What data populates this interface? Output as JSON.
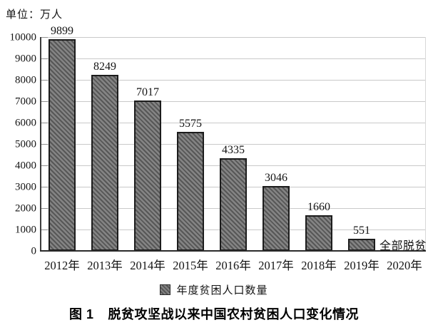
{
  "unit_label": "单位：万人",
  "legend": {
    "label": "年度贫困人口数量"
  },
  "caption": {
    "prefix": "图 1",
    "text": "脱贫攻坚战以来中国农村贫困人口变化情况"
  },
  "annotation_text": "全部脱贫",
  "colors": {
    "bar_fill": "#848484",
    "bar_hatch": "#575757",
    "bar_border": "#1c1c1c",
    "gridline": "#c9c9c9",
    "axis": "#2b2b2b",
    "text": "#141414"
  },
  "chart_data": {
    "type": "bar",
    "title": "图1 脱贫攻坚战以来中国农村贫困人口变化情况",
    "unit": "单位：万人",
    "categories": [
      "2012年",
      "2013年",
      "2014年",
      "2015年",
      "2016年",
      "2017年",
      "2018年",
      "2019年",
      "2020年"
    ],
    "values": [
      9899,
      8249,
      7017,
      5575,
      4335,
      3046,
      1660,
      551,
      0
    ],
    "series_name": "年度贫困人口数量",
    "annotations": [
      {
        "category": "2020年",
        "text": "全部脱贫"
      }
    ],
    "xlabel": "",
    "ylabel": "万人",
    "ylim": [
      0,
      10000
    ],
    "ytick_step": 1000,
    "grid": true,
    "legend_position": "bottom",
    "bar_hatch": "diagonal"
  }
}
